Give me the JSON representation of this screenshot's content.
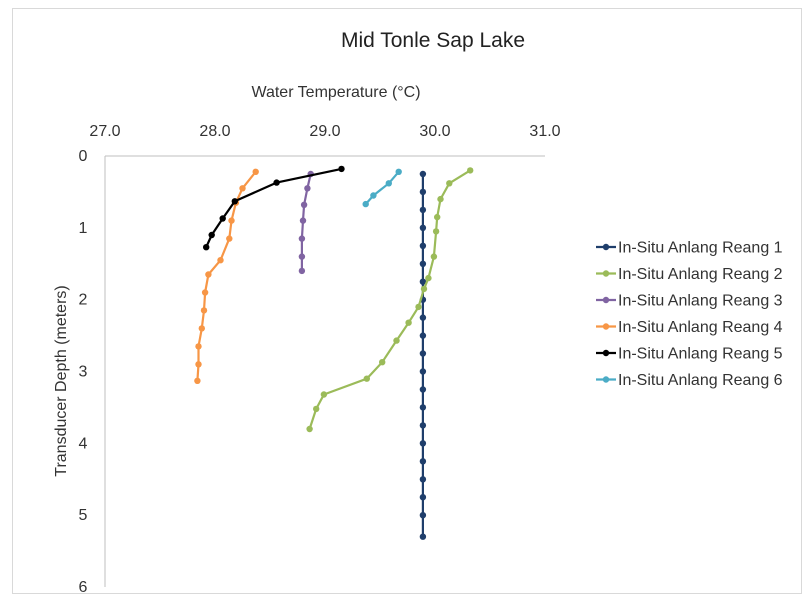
{
  "chart_data": {
    "type": "line",
    "title": "Mid Tonle Sap Lake",
    "xlabel": "Water Temperature (°C)",
    "ylabel": "Transducer Depth (meters)",
    "x_axis_position": "top",
    "y_axis_reversed": true,
    "xlim": [
      27.0,
      31.0
    ],
    "ylim": [
      0,
      6
    ],
    "x_ticks": [
      "27.0",
      "28.0",
      "29.0",
      "30.0",
      "31.0"
    ],
    "y_ticks": [
      "0",
      "1",
      "2",
      "3",
      "4",
      "5",
      "6"
    ],
    "grid": false,
    "legend_position": "right",
    "series": [
      {
        "name": "In-Situ Anlang Reang 1",
        "color": "#1f3e6b",
        "points": [
          [
            29.89,
            0.25
          ],
          [
            29.89,
            0.5
          ],
          [
            29.89,
            0.75
          ],
          [
            29.89,
            1.0
          ],
          [
            29.89,
            1.25
          ],
          [
            29.89,
            1.5
          ],
          [
            29.89,
            1.75
          ],
          [
            29.89,
            2.0
          ],
          [
            29.89,
            2.25
          ],
          [
            29.89,
            2.5
          ],
          [
            29.89,
            2.75
          ],
          [
            29.89,
            3.0
          ],
          [
            29.89,
            3.25
          ],
          [
            29.89,
            3.5
          ],
          [
            29.89,
            3.75
          ],
          [
            29.89,
            4.0
          ],
          [
            29.89,
            4.25
          ],
          [
            29.89,
            4.5
          ],
          [
            29.89,
            4.75
          ],
          [
            29.89,
            5.0
          ],
          [
            29.89,
            5.3
          ]
        ]
      },
      {
        "name": "In-Situ Anlang Reang 2",
        "color": "#9bbb59",
        "points": [
          [
            30.32,
            0.2
          ],
          [
            30.13,
            0.38
          ],
          [
            30.05,
            0.6
          ],
          [
            30.02,
            0.85
          ],
          [
            30.01,
            1.05
          ],
          [
            29.99,
            1.4
          ],
          [
            29.94,
            1.7
          ],
          [
            29.9,
            1.85
          ],
          [
            29.85,
            2.1
          ],
          [
            29.76,
            2.32
          ],
          [
            29.65,
            2.57
          ],
          [
            29.52,
            2.87
          ],
          [
            29.38,
            3.1
          ],
          [
            28.99,
            3.32
          ],
          [
            28.92,
            3.52
          ],
          [
            28.86,
            3.8
          ]
        ]
      },
      {
        "name": "In-Situ Anlang Reang 3",
        "color": "#8064a2",
        "points": [
          [
            28.87,
            0.25
          ],
          [
            28.84,
            0.45
          ],
          [
            28.81,
            0.68
          ],
          [
            28.8,
            0.9
          ],
          [
            28.79,
            1.15
          ],
          [
            28.79,
            1.4
          ],
          [
            28.79,
            1.6
          ]
        ]
      },
      {
        "name": "In-Situ Anlang Reang 4",
        "color": "#f79646",
        "points": [
          [
            28.37,
            0.22
          ],
          [
            28.25,
            0.45
          ],
          [
            28.19,
            0.65
          ],
          [
            28.15,
            0.9
          ],
          [
            28.13,
            1.15
          ],
          [
            28.05,
            1.45
          ],
          [
            27.94,
            1.65
          ],
          [
            27.91,
            1.9
          ],
          [
            27.9,
            2.15
          ],
          [
            27.88,
            2.4
          ],
          [
            27.85,
            2.65
          ],
          [
            27.85,
            2.9
          ],
          [
            27.84,
            3.13
          ]
        ]
      },
      {
        "name": "In-Situ Anlang Reang 5",
        "color": "#000000",
        "points": [
          [
            29.15,
            0.18
          ],
          [
            28.56,
            0.37
          ],
          [
            28.18,
            0.63
          ],
          [
            28.07,
            0.87
          ],
          [
            27.97,
            1.1
          ],
          [
            27.92,
            1.27
          ]
        ]
      },
      {
        "name": "In-Situ Anlang Reang 6",
        "color": "#4bacc6",
        "points": [
          [
            29.67,
            0.22
          ],
          [
            29.58,
            0.38
          ],
          [
            29.44,
            0.55
          ],
          [
            29.37,
            0.67
          ]
        ]
      }
    ]
  }
}
